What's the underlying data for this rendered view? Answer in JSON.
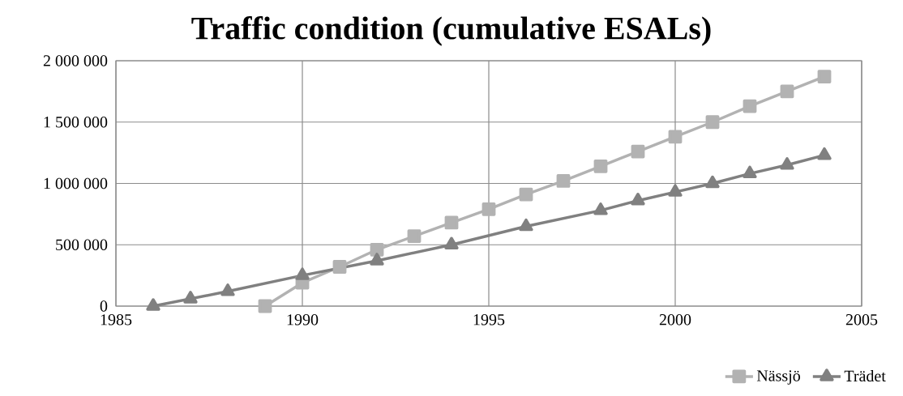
{
  "chart_data": {
    "type": "line",
    "title": "Traffic condition (cumulative ESALs)",
    "xlim": [
      1985,
      2005
    ],
    "xticks": [
      1985,
      1990,
      1995,
      2000,
      2005
    ],
    "ylim": [
      0,
      2000000
    ],
    "yticks": [
      {
        "value": 0,
        "label": "0"
      },
      {
        "value": 500000,
        "label": "500 000"
      },
      {
        "value": 1000000,
        "label": "1 000 000"
      },
      {
        "value": 1500000,
        "label": "1 500 000"
      },
      {
        "value": 2000000,
        "label": "2 000 000"
      }
    ],
    "grid": true,
    "legend": "bottom right",
    "series": [
      {
        "name": "Nässjö",
        "color": "#b2b2b2",
        "marker": "square",
        "x": [
          1989,
          1990,
          1991,
          1992,
          1993,
          1994,
          1995,
          1996,
          1997,
          1998,
          1999,
          2000,
          2001,
          2002,
          2003,
          2004
        ],
        "values": [
          0,
          190000,
          320000,
          460000,
          570000,
          680000,
          790000,
          910000,
          1020000,
          1140000,
          1260000,
          1380000,
          1500000,
          1630000,
          1750000,
          1870000
        ]
      },
      {
        "name": "Trädet",
        "color": "#808080",
        "marker": "triangle",
        "x": [
          1986,
          1987,
          1988,
          1990,
          1992,
          1994,
          1996,
          1998,
          1999,
          2000,
          2001,
          2002,
          2003,
          2004
        ],
        "values": [
          0,
          60000,
          120000,
          250000,
          370000,
          500000,
          650000,
          780000,
          860000,
          930000,
          1000000,
          1080000,
          1150000,
          1230000
        ]
      }
    ]
  }
}
